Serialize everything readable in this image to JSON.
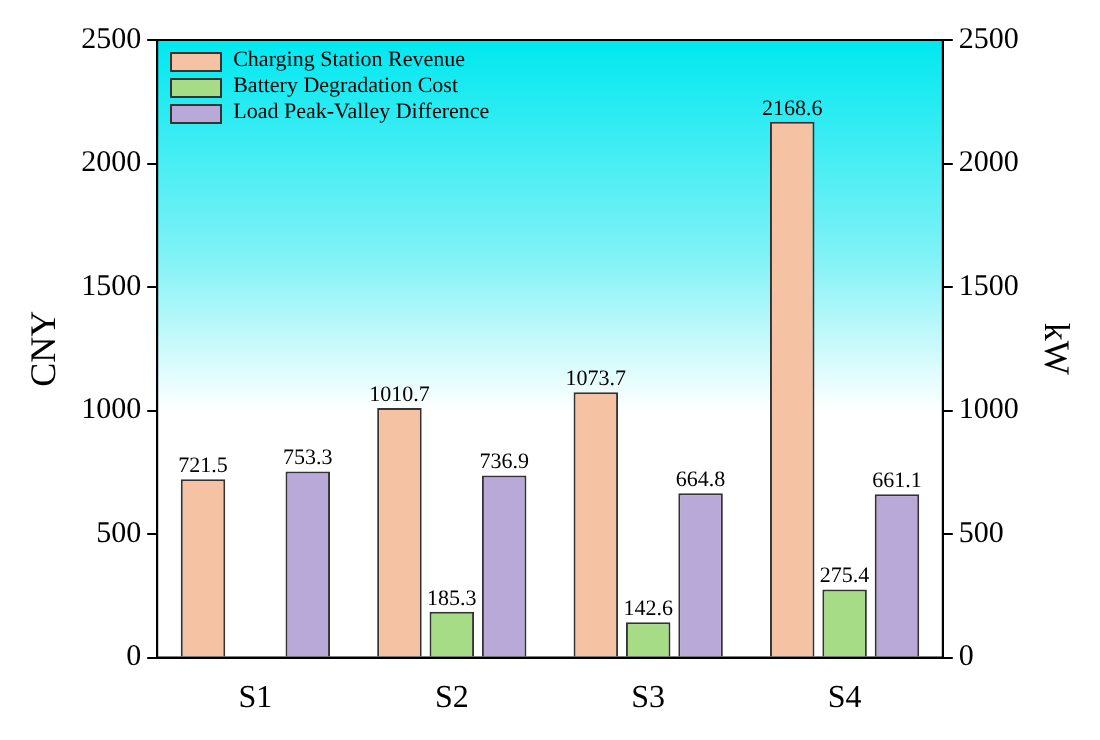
{
  "chart_data": {
    "type": "bar",
    "categories": [
      "S1",
      "S2",
      "S3",
      "S4"
    ],
    "ylabel": "CNY",
    "y2label": "kW",
    "series": [
      {
        "name": "Charging Station Revenue",
        "color": "#f5c3a3",
        "values": [
          721.5,
          1010.7,
          1073.7,
          2168.6
        ]
      },
      {
        "name": "Battery Degradation Cost",
        "color": "#a6dc86",
        "values": [
          null,
          185.3,
          142.6,
          275.4
        ]
      },
      {
        "name": "Load Peak-Valley Difference",
        "color": "#b9a9d9",
        "values": [
          753.3,
          736.9,
          664.8,
          661.1
        ],
        "axis": "y2"
      }
    ],
    "ylim": [
      0,
      2500
    ],
    "yticks": [
      0,
      500,
      1000,
      1500,
      2000,
      2500
    ],
    "y2lim": [
      0,
      2500
    ],
    "y2ticks": [
      0,
      500,
      1000,
      1500,
      2000,
      2500
    ],
    "data_labels": true,
    "legend": "top left",
    "grid": false
  }
}
